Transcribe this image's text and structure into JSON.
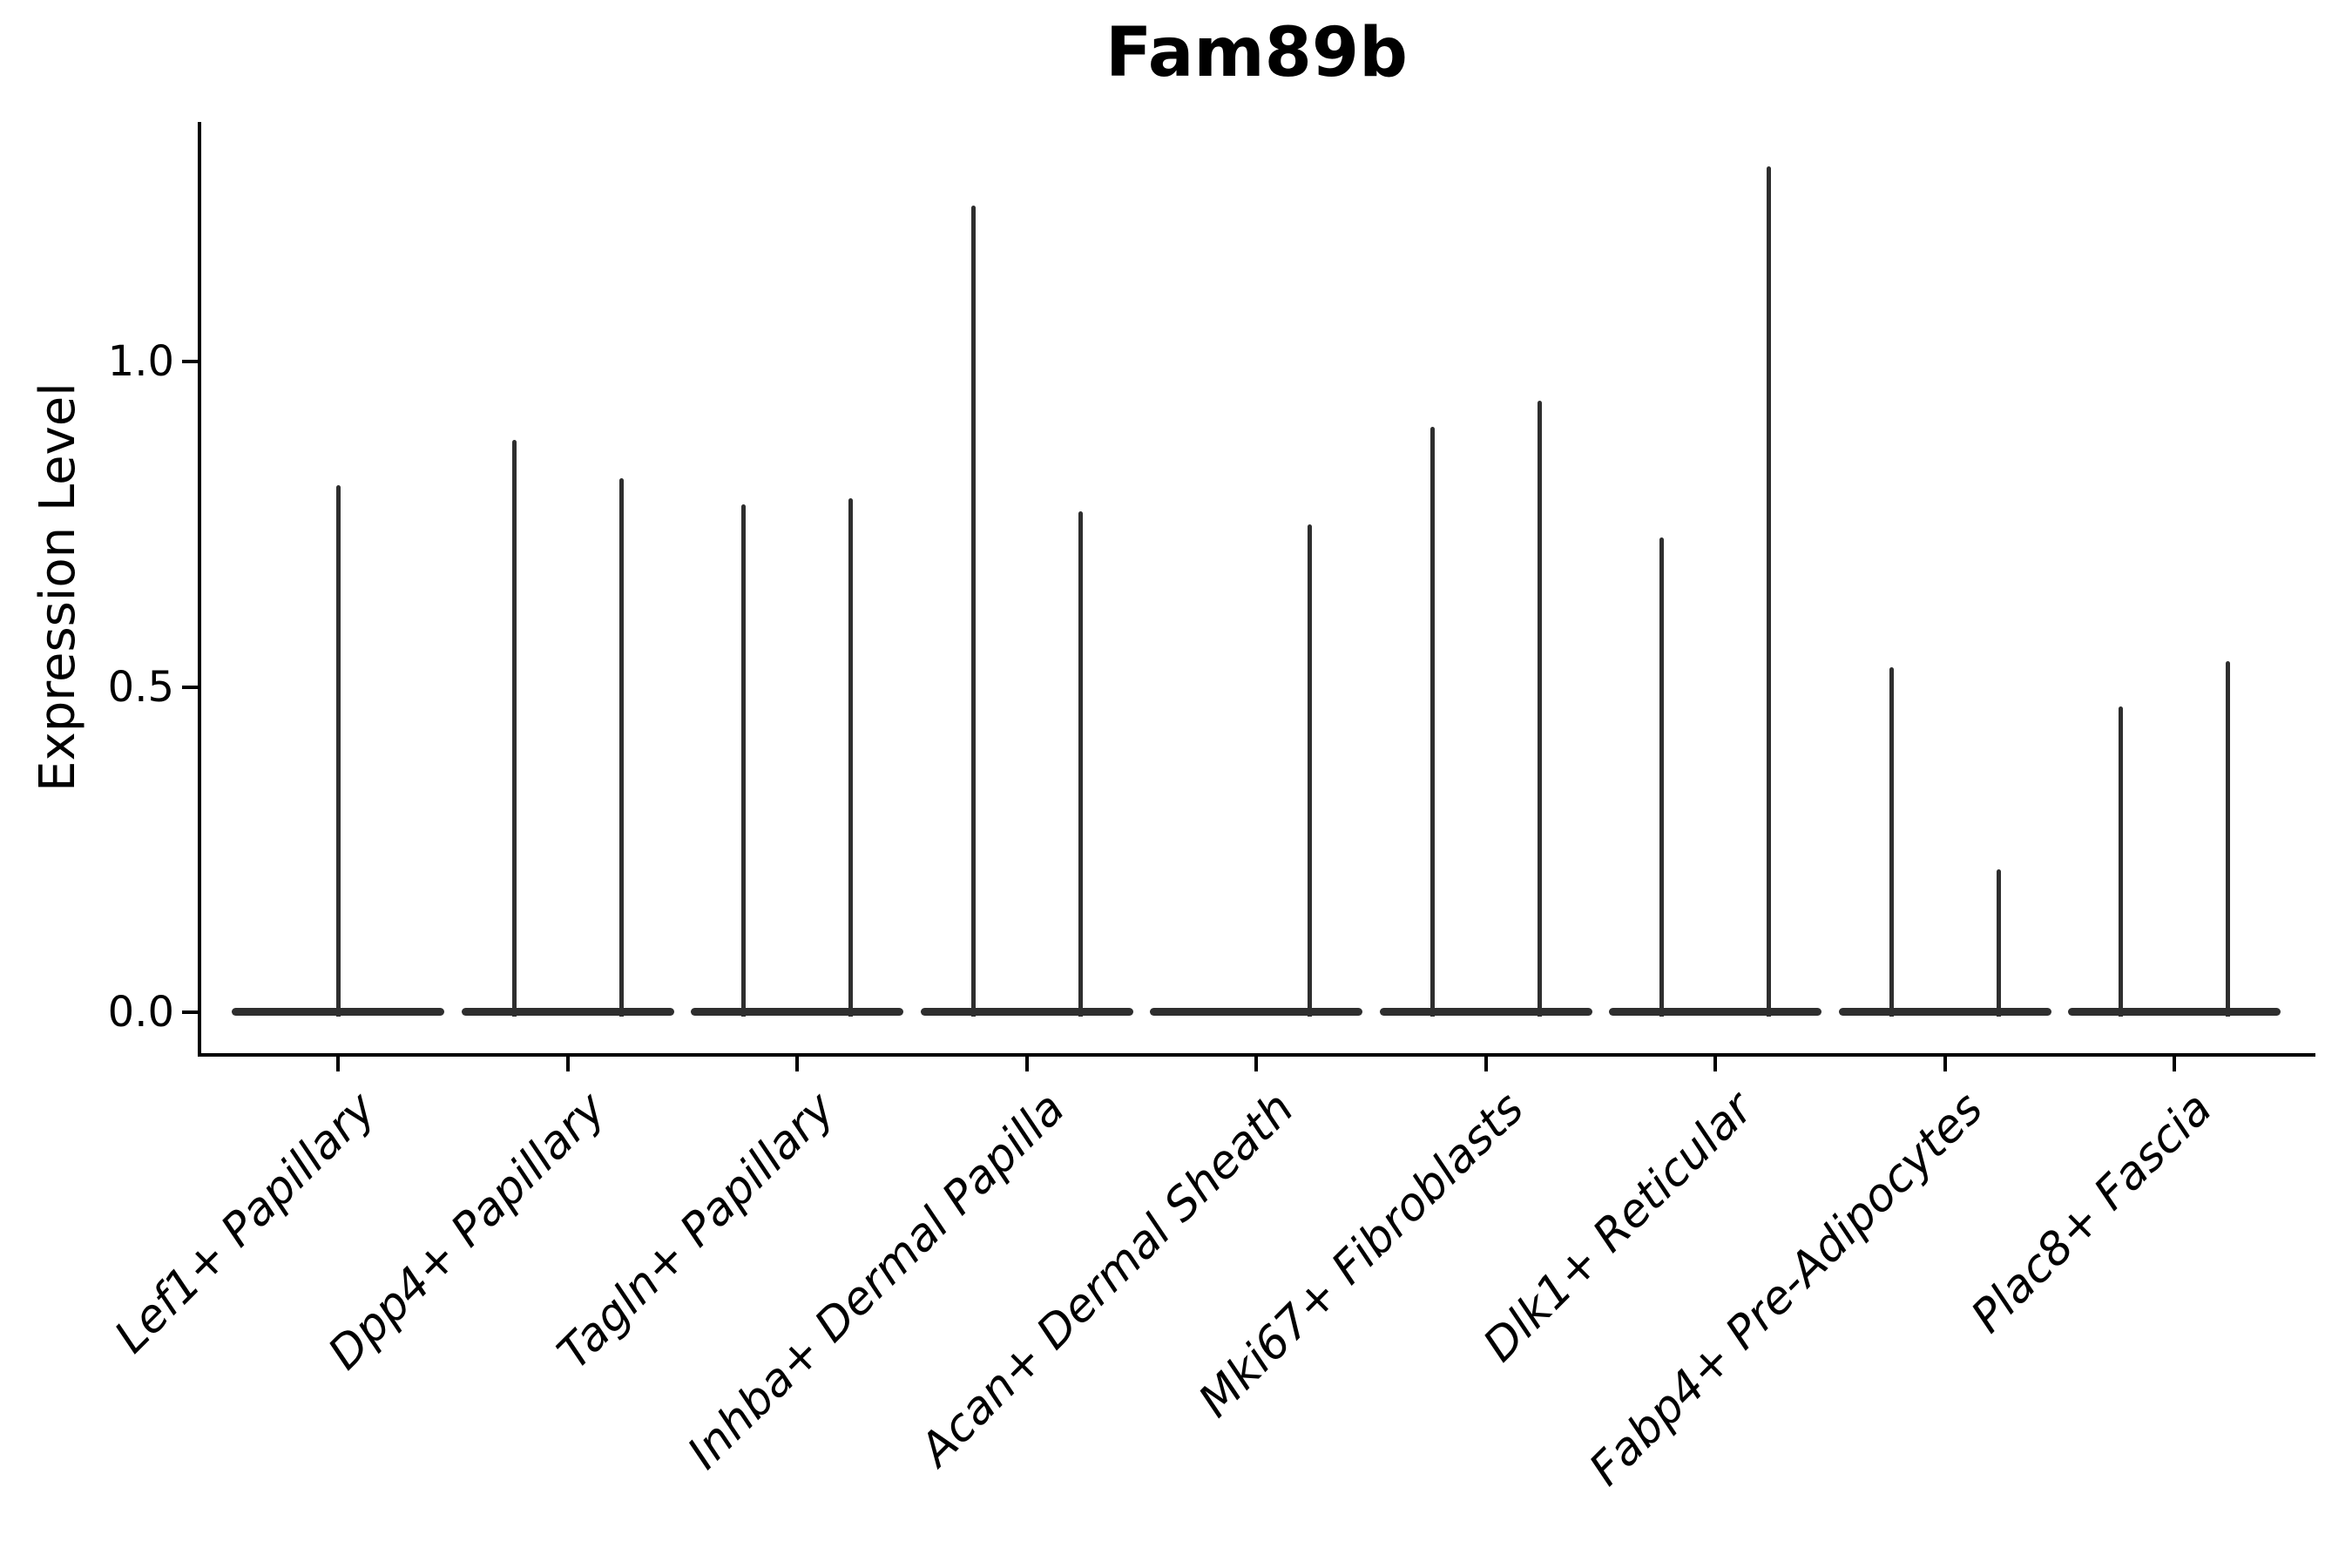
{
  "figure": {
    "title": "Fam89b",
    "ylabel": "Expression Level",
    "ytick_labels": [
      "0.0",
      "0.5",
      "1.0"
    ]
  },
  "chart_data": {
    "type": "violin",
    "title": "Fam89b",
    "xlabel": "",
    "ylabel": "Expression Level",
    "ylim": [
      0,
      1.37
    ],
    "yticks": [
      0.0,
      0.5,
      1.0
    ],
    "grid": false,
    "legend": "none",
    "style_note": "Seurat-style VlnPlot: each violin collapsed to a flat lens at 0 expression with a single thin spike reaching the maximum expression value; most categories contain two dodged violins",
    "categories": [
      "Lef1+ Papillary",
      "Dpp4+ Papillary",
      "Tagln+ Papillary",
      "Inhba+ Dermal Papilla",
      "Acan+ Dermal Sheath",
      "Mki67+ Fibroblasts",
      "Dlk1+ Reticular",
      "Fabp4+ Pre-Adipocytes",
      "Plac8+ Fascia"
    ],
    "violins": [
      {
        "category": "Lef1+ Papillary",
        "position": "center",
        "max_expression": 0.81
      },
      {
        "category": "Dpp4+ Papillary",
        "position": "left",
        "max_expression": 0.88
      },
      {
        "category": "Dpp4+ Papillary",
        "position": "right",
        "max_expression": 0.82
      },
      {
        "category": "Tagln+ Papillary",
        "position": "left",
        "max_expression": 0.78
      },
      {
        "category": "Tagln+ Papillary",
        "position": "right",
        "max_expression": 0.79
      },
      {
        "category": "Inhba+ Dermal Papilla",
        "position": "left",
        "max_expression": 1.24
      },
      {
        "category": "Inhba+ Dermal Papilla",
        "position": "right",
        "max_expression": 0.77
      },
      {
        "category": "Acan+ Dermal Sheath",
        "position": "left",
        "max_expression": 0.0
      },
      {
        "category": "Acan+ Dermal Sheath",
        "position": "right",
        "max_expression": 0.75
      },
      {
        "category": "Mki67+ Fibroblasts",
        "position": "left",
        "max_expression": 0.9
      },
      {
        "category": "Mki67+ Fibroblasts",
        "position": "right",
        "max_expression": 0.94
      },
      {
        "category": "Dlk1+ Reticular",
        "position": "left",
        "max_expression": 0.73
      },
      {
        "category": "Dlk1+ Reticular",
        "position": "right",
        "max_expression": 1.3
      },
      {
        "category": "Fabp4+ Pre-Adipocytes",
        "position": "left",
        "max_expression": 0.53
      },
      {
        "category": "Fabp4+ Pre-Adipocytes",
        "position": "right",
        "max_expression": 0.22
      },
      {
        "category": "Plac8+ Fascia",
        "position": "left",
        "max_expression": 0.47
      },
      {
        "category": "Plac8+ Fascia",
        "position": "right",
        "max_expression": 0.54
      }
    ],
    "colors": {
      "violin_stroke": "#2e2e2e",
      "axis": "#000000",
      "background": "#ffffff"
    }
  }
}
